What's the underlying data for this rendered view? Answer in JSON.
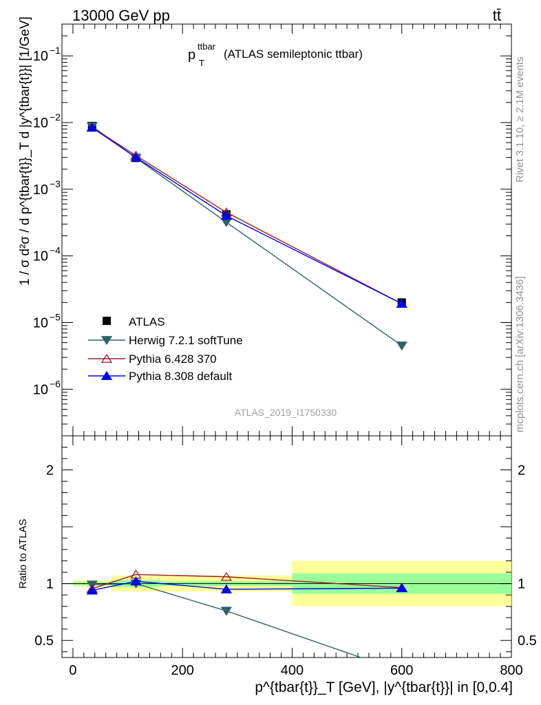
{
  "header": {
    "energy_label": "13000 GeV pp",
    "process_label": "tt̄",
    "analysis_title_main": "p",
    "analysis_title_sup": "ttbar",
    "analysis_title_sub": "T",
    "analysis_title_rest": "(ATLAS semileptonic ttbar)",
    "analysis_id": "ATLAS_2019_I1750330",
    "rivet_label": "Rivet 3.1.10, ≥ 2.1M events",
    "mcplots_label": "mcplots.cern.ch [arXiv:1306.3436]"
  },
  "axes": {
    "y_main_label": "1 / σ d²σ / d p^{tbar{t}}_T d |y^{tbar{t}}| [1/GeV]",
    "y_ratio_label": "Ratio to ATLAS",
    "x_label": "p^{tbar{t}}_T [GeV], |y^{tbar{t}}| in [0,0.4]"
  },
  "colors": {
    "atlas": "#000000",
    "herwig": "#2a6468",
    "pythia6": "#9c1b2a",
    "pythia8": "#0000ee",
    "band_inner": "#99ff99",
    "band_outer": "#ffff99"
  },
  "chart_data": {
    "type": "line",
    "x_axis": {
      "range": [
        -20,
        800
      ],
      "ticks": [
        0,
        200,
        400,
        600,
        800
      ]
    },
    "y_main_axis": {
      "scale": "log",
      "range": [
        2e-07,
        0.3
      ],
      "tick_labels": [
        {
          "value": 1e-06,
          "label": "10",
          "exp": "−6"
        },
        {
          "value": 1e-05,
          "label": "10",
          "exp": "−5"
        },
        {
          "value": 0.0001,
          "label": "10",
          "exp": "−4"
        },
        {
          "value": 0.001,
          "label": "10",
          "exp": "−3"
        },
        {
          "value": 0.01,
          "label": "10",
          "exp": "−2"
        },
        {
          "value": 0.1,
          "label": "10",
          "exp": "−1"
        }
      ]
    },
    "y_ratio_axis": {
      "range": [
        0.35,
        2.3
      ],
      "tick_labels": [
        {
          "value": 0.5,
          "label": "0.5"
        },
        {
          "value": 1,
          "label": "1"
        },
        {
          "value": 2,
          "label": "2"
        }
      ]
    },
    "bins": [
      [
        0,
        70
      ],
      [
        70,
        160
      ],
      [
        160,
        400
      ],
      [
        400,
        800
      ]
    ],
    "x": [
      35,
      115,
      280,
      600
    ],
    "data": {
      "name": "ATLAS",
      "values": [
        0.0089,
        0.00295,
        0.00042,
        2e-05
      ],
      "ratio_band_inner": [
        0.015,
        0.03,
        0.02,
        0.09
      ],
      "ratio_band_outer": [
        0.03,
        0.07,
        0.07,
        0.2
      ]
    },
    "series": [
      {
        "name": "Herwig 7.2.1 softTune",
        "marker": "triangle-down-filled",
        "values": [
          0.0088,
          0.00295,
          0.00032,
          4.5e-06
        ],
        "ratio": [
          0.99,
          1.0,
          0.76,
          0.225
        ]
      },
      {
        "name": "Pythia 6.428 370",
        "marker": "triangle-up-open",
        "values": [
          0.0085,
          0.0032,
          0.00045,
          1.92e-05
        ],
        "ratio": [
          0.955,
          1.08,
          1.06,
          0.965
        ]
      },
      {
        "name": "Pythia 8.308 default",
        "marker": "triangle-up-filled",
        "values": [
          0.0084,
          0.003,
          0.0004,
          1.92e-05
        ],
        "ratio": [
          0.94,
          1.02,
          0.95,
          0.96
        ]
      }
    ]
  }
}
